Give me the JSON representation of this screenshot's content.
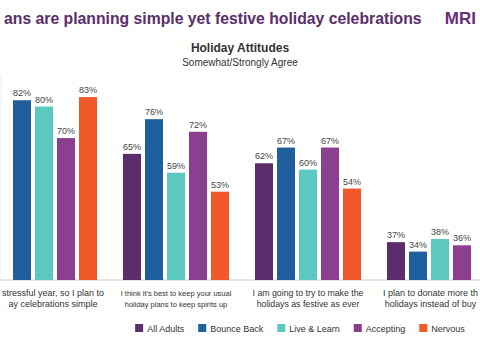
{
  "chart_data": {
    "type": "bar",
    "title": "ans are planning simple yet festive holiday celebrations",
    "subtitle": [
      "Holiday Attitudes",
      "Somewhat/Strongly Agree"
    ],
    "annotations": [
      "MRI"
    ],
    "categories": [
      "stressful year, so I plan to\nay celebrations simple",
      "I think it's best to keep your usual\nholiday plans to keep spirits up",
      "I am going to try to make the\nholidays as festive as ever",
      "I plan to donate more th\nholidays instead of buy"
    ],
    "series": [
      {
        "name": "All Adults",
        "color": "#5b2d6b",
        "values": [
          null,
          65,
          62,
          37
        ],
        "value_labels": [
          null,
          "65%",
          "62%",
          "37%"
        ]
      },
      {
        "name": "Bounce Back",
        "color": "#1f5f9e",
        "values": [
          82,
          76,
          67,
          34
        ],
        "value_labels": [
          "82%",
          "76%",
          "67%",
          "34%"
        ]
      },
      {
        "name": "Live & Learn",
        "color": "#5cc8c0",
        "values": [
          80,
          59,
          60,
          38
        ],
        "value_labels": [
          "80%",
          "59%",
          "60%",
          "38%"
        ]
      },
      {
        "name": "Accepting",
        "color": "#8a3f8f",
        "values": [
          70,
          72,
          67,
          36
        ],
        "value_labels": [
          "70%",
          "72%",
          "67%",
          "36%"
        ]
      },
      {
        "name": "Nervous",
        "color": "#f05a28",
        "values": [
          83,
          53,
          54,
          null
        ],
        "value_labels": [
          "83%",
          "53%",
          "54%",
          null
        ]
      }
    ],
    "ylim": [
      25,
      90
    ],
    "grid": false,
    "legend": "bottom",
    "data_labels": true,
    "tick_labels": false
  }
}
